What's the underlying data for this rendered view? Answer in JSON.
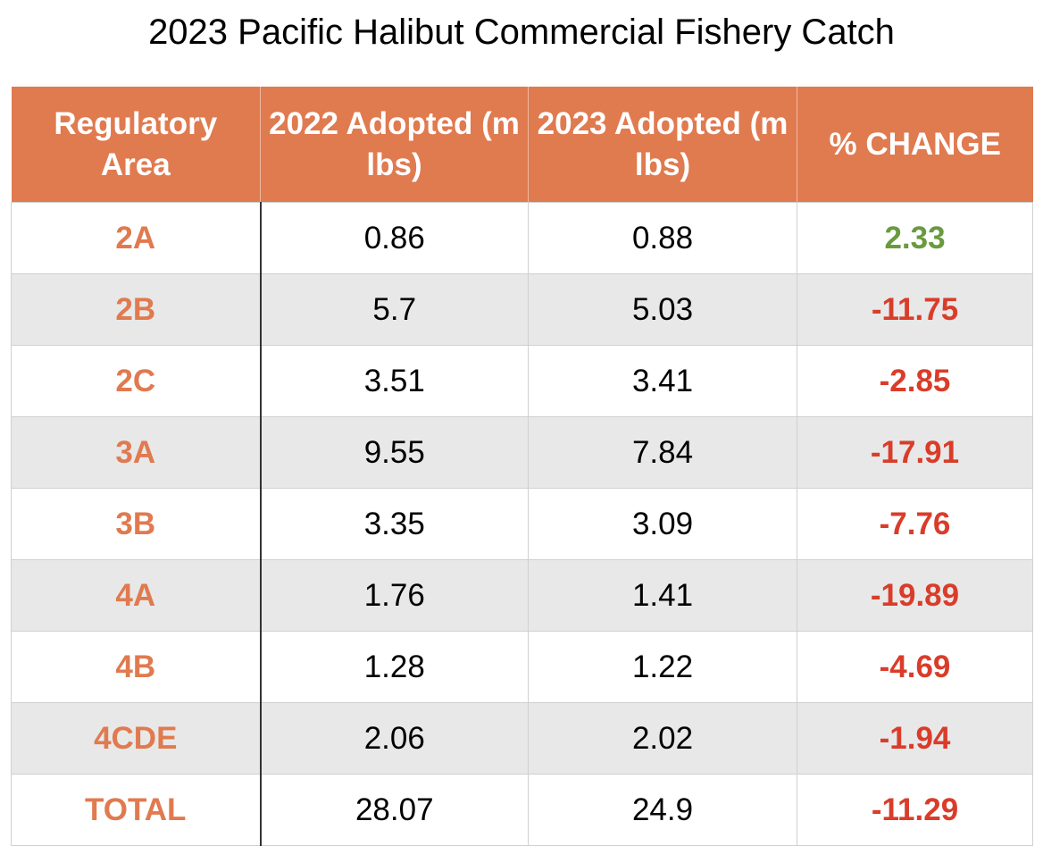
{
  "title": "2023 Pacific Halibut Commercial Fishery Catch",
  "table": {
    "headers": [
      "Regulatory Area",
      "2022 Adopted (m lbs)",
      "2023 Adopted (m lbs)",
      "% CHANGE"
    ],
    "rows": [
      [
        "2A",
        "0.86",
        "0.88",
        "2.33"
      ],
      [
        "2B",
        "5.7",
        "5.03",
        "-11.75"
      ],
      [
        "2C",
        "3.51",
        "3.41",
        "-2.85"
      ],
      [
        "3A",
        "9.55",
        "7.84",
        "-17.91"
      ],
      [
        "3B",
        "3.35",
        "3.09",
        "-7.76"
      ],
      [
        "4A",
        "1.76",
        "1.41",
        "-19.89"
      ],
      [
        "4B",
        "1.28",
        "1.22",
        "-4.69"
      ],
      [
        "4CDE",
        "2.06",
        "2.02",
        "-1.94"
      ],
      [
        "TOTAL",
        "28.07",
        "24.9",
        "-11.29"
      ]
    ]
  }
}
